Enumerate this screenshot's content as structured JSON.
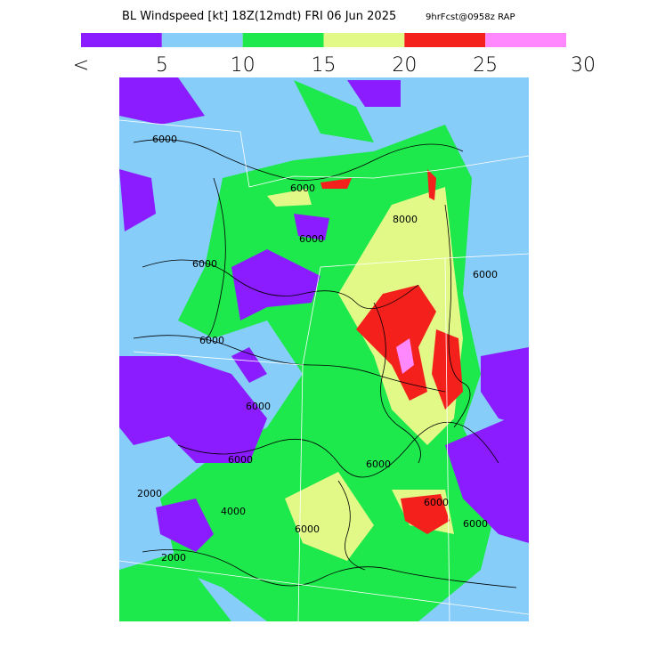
{
  "header": {
    "title": "BL Windspeed [kt] 18Z(12mdt) FRI 06 Jun 2025",
    "forecast": "9hrFcst@0958z RAP"
  },
  "colorbar": {
    "colors": [
      "#8a1cff",
      "#86cdfa",
      "#1de84c",
      "#e2f987",
      "#f4201c",
      "#ff88ff"
    ],
    "labels": [
      "<",
      "5",
      "10",
      "15",
      "20",
      "25",
      "30"
    ]
  },
  "contour_labels": [
    "6000",
    "6000",
    "6000",
    "6000",
    "6000",
    "6000",
    "8000",
    "6000",
    "6000",
    "6000",
    "2000",
    "4000",
    "2000",
    "6000",
    "6000",
    "6000"
  ]
}
